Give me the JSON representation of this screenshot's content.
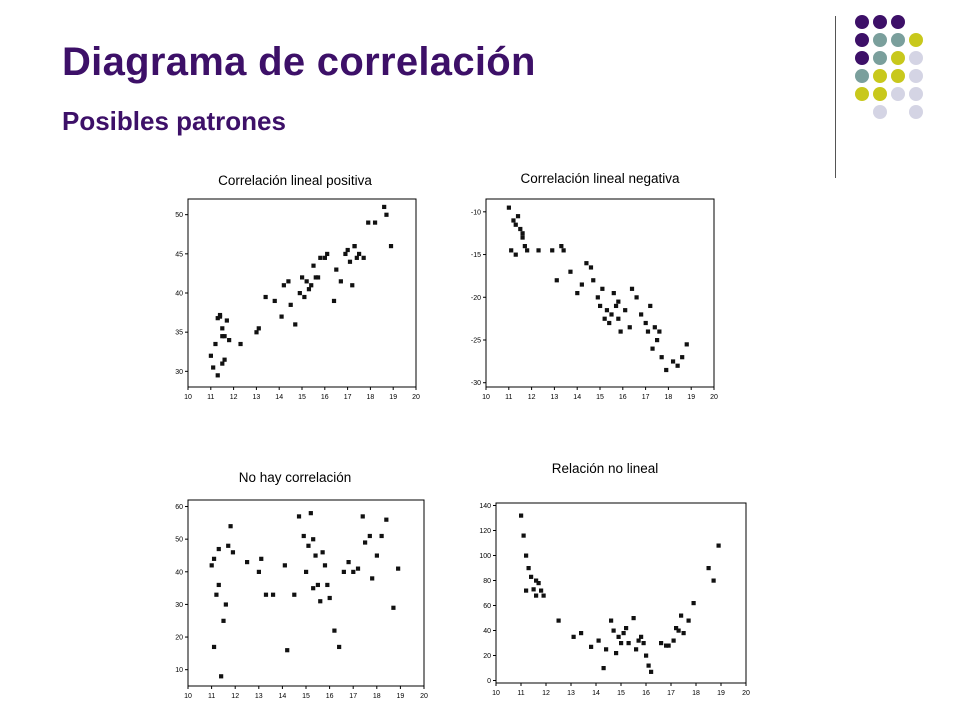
{
  "header": {
    "title": "Diagrama de correlación",
    "subtitle": "Posibles patrones"
  },
  "decor": {
    "dot_grid": [
      [
        "purple",
        "purple",
        "purple",
        null
      ],
      [
        "purple",
        "teal",
        "teal",
        "yellow"
      ],
      [
        "purple",
        "teal",
        "yellow",
        "lavender"
      ],
      [
        "teal",
        "yellow",
        "yellow",
        "lavender"
      ],
      [
        "yellow",
        "yellow",
        "lavender",
        "lavender"
      ],
      [
        null,
        "lavender",
        null,
        "lavender"
      ]
    ],
    "colors": {
      "purple": "#3d1068",
      "teal": "#7a9f9c",
      "yellow": "#c8c81c",
      "lavender": "#d4d4e4"
    }
  },
  "chart_data": [
    {
      "type": "scatter",
      "title": "Correlación lineal positiva",
      "xlim": [
        10,
        20
      ],
      "ylim": [
        28,
        52
      ],
      "xticks": [
        "10",
        "11",
        "12",
        "13",
        "14",
        "15",
        "16",
        "17",
        "18",
        "19",
        "20"
      ],
      "yticks": [
        {
          "v": 30,
          "label": "30"
        },
        {
          "v": 35,
          "label": "35"
        },
        {
          "v": 40,
          "label": "40"
        },
        {
          "v": 45,
          "label": "45"
        },
        {
          "v": 50,
          "label": "50"
        }
      ],
      "x": [
        11.0,
        11.1,
        11.2,
        11.3,
        11.4,
        11.5,
        11.6,
        11.7,
        11.8,
        11.3,
        11.5,
        11.6,
        11.4,
        11.5,
        12.3,
        13.0,
        13.1,
        13.4,
        13.8,
        14.1,
        14.2,
        14.4,
        14.5,
        14.7,
        14.9,
        15.0,
        15.1,
        15.2,
        15.3,
        15.5,
        15.6,
        15.8,
        16.0,
        16.1,
        15.4,
        15.7,
        16.4,
        16.5,
        16.7,
        16.9,
        17.0,
        17.1,
        17.2,
        17.3,
        17.4,
        17.5,
        17.7,
        17.3,
        17.9,
        18.2,
        18.6,
        18.9,
        18.7
      ],
      "y": [
        32.0,
        30.5,
        33.5,
        36.8,
        37.0,
        35.5,
        34.5,
        36.5,
        34.0,
        29.5,
        31.0,
        31.5,
        37.2,
        34.5,
        33.5,
        35.0,
        35.5,
        39.5,
        39.0,
        37.0,
        41.0,
        41.5,
        38.5,
        36.0,
        40.0,
        42.0,
        39.5,
        41.5,
        40.5,
        43.5,
        42.0,
        44.5,
        44.5,
        45.0,
        41.0,
        42.0,
        39.0,
        43.0,
        41.5,
        45.0,
        45.5,
        44.0,
        41.0,
        46.0,
        44.5,
        45.0,
        44.5,
        46.0,
        49.0,
        49.0,
        51.0,
        46.0,
        50.0
      ]
    },
    {
      "type": "scatter",
      "title": "Correlación lineal negativa",
      "xlim": [
        10,
        20
      ],
      "ylim": [
        -30.5,
        -8.5
      ],
      "xticks": [
        "10",
        "11",
        "12",
        "13",
        "14",
        "15",
        "16",
        "17",
        "18",
        "19",
        "20"
      ],
      "yticks": [
        {
          "v": -10,
          "label": "-10"
        },
        {
          "v": -15,
          "label": "-15"
        },
        {
          "v": -20,
          "label": "-20"
        },
        {
          "v": -25,
          "label": "-25"
        },
        {
          "v": -30,
          "label": "-30"
        }
      ],
      "x": [
        11.0,
        11.2,
        11.3,
        11.4,
        11.6,
        11.7,
        11.1,
        11.3,
        11.8,
        11.5,
        11.6,
        12.3,
        12.9,
        13.1,
        13.3,
        13.4,
        13.7,
        14.0,
        14.2,
        14.4,
        14.6,
        14.7,
        14.9,
        15.0,
        15.1,
        15.2,
        15.3,
        15.4,
        15.5,
        15.6,
        15.7,
        15.8,
        15.9,
        16.1,
        16.3,
        16.6,
        16.8,
        17.0,
        17.1,
        17.2,
        17.3,
        17.4,
        17.6,
        17.7,
        17.9,
        18.2,
        18.4,
        18.6,
        18.8,
        15.8,
        16.4,
        17.5
      ],
      "y": [
        -9.5,
        -11.0,
        -11.5,
        -10.5,
        -12.5,
        -14.0,
        -14.5,
        -15.0,
        -14.5,
        -12.0,
        -13.0,
        -14.5,
        -14.5,
        -18.0,
        -14.0,
        -14.5,
        -17.0,
        -19.5,
        -18.5,
        -16.0,
        -16.5,
        -18.0,
        -20.0,
        -21.0,
        -19.0,
        -22.5,
        -21.5,
        -23.0,
        -22.0,
        -19.5,
        -21.0,
        -22.5,
        -24.0,
        -21.5,
        -23.5,
        -20.0,
        -22.0,
        -23.0,
        -24.0,
        -21.0,
        -26.0,
        -23.5,
        -24.0,
        -27.0,
        -28.5,
        -27.5,
        -28.0,
        -27.0,
        -25.5,
        -20.5,
        -19.0,
        -25.0
      ]
    },
    {
      "type": "scatter",
      "title": "No hay correlación",
      "xlim": [
        10,
        20
      ],
      "ylim": [
        5,
        62
      ],
      "xticks": [
        "10",
        "11",
        "12",
        "13",
        "14",
        "15",
        "16",
        "17",
        "18",
        "19",
        "20"
      ],
      "yticks": [
        {
          "v": 10,
          "label": "10"
        },
        {
          "v": 20,
          "label": "20"
        },
        {
          "v": 30,
          "label": "30"
        },
        {
          "v": 40,
          "label": "40"
        },
        {
          "v": 50,
          "label": "50"
        },
        {
          "v": 60,
          "label": "60"
        }
      ],
      "x": [
        11.0,
        11.1,
        11.2,
        11.3,
        11.5,
        11.6,
        11.7,
        11.8,
        11.9,
        11.4,
        11.1,
        11.3,
        12.5,
        13.0,
        13.1,
        13.3,
        13.6,
        14.1,
        14.2,
        14.5,
        14.7,
        14.9,
        15.0,
        15.1,
        15.2,
        15.3,
        15.4,
        15.5,
        15.6,
        15.7,
        15.8,
        15.9,
        15.3,
        16.0,
        16.2,
        16.4,
        16.8,
        17.0,
        17.2,
        17.4,
        17.5,
        17.7,
        17.8,
        18.0,
        18.2,
        18.4,
        18.7,
        18.9,
        16.6
      ],
      "y": [
        42.0,
        44.0,
        33.0,
        36.0,
        25.0,
        30.0,
        48.0,
        54.0,
        46.0,
        8.0,
        17.0,
        47.0,
        43.0,
        40.0,
        44.0,
        33.0,
        33.0,
        42.0,
        16.0,
        33.0,
        57.0,
        51.0,
        40.0,
        48.0,
        58.0,
        50.0,
        45.0,
        36.0,
        31.0,
        46.0,
        42.0,
        36.0,
        35.0,
        32.0,
        22.0,
        17.0,
        43.0,
        40.0,
        41.0,
        57.0,
        49.0,
        51.0,
        38.0,
        45.0,
        51.0,
        56.0,
        29.0,
        41.0,
        40.0
      ]
    },
    {
      "type": "scatter",
      "title": "Relación no lineal",
      "xlim": [
        10,
        20
      ],
      "ylim": [
        -2,
        142
      ],
      "xticks": [
        "10",
        "11",
        "12",
        "13",
        "14",
        "15",
        "16",
        "17",
        "18",
        "19",
        "20"
      ],
      "yticks": [
        {
          "v": 0,
          "label": "0"
        },
        {
          "v": 20,
          "label": "20"
        },
        {
          "v": 40,
          "label": "40"
        },
        {
          "v": 60,
          "label": "60"
        },
        {
          "v": 80,
          "label": "80"
        },
        {
          "v": 100,
          "label": "100"
        },
        {
          "v": 120,
          "label": "120"
        },
        {
          "v": 140,
          "label": "140"
        }
      ],
      "x": [
        11.0,
        11.1,
        11.2,
        11.3,
        11.4,
        11.5,
        11.6,
        11.7,
        11.8,
        11.9,
        11.2,
        11.6,
        12.5,
        13.1,
        13.4,
        13.8,
        14.1,
        14.4,
        14.6,
        14.7,
        14.8,
        14.9,
        15.0,
        15.1,
        15.2,
        15.3,
        15.5,
        15.6,
        15.7,
        15.8,
        15.9,
        16.0,
        16.1,
        16.2,
        14.3,
        16.6,
        16.8,
        16.9,
        17.1,
        17.2,
        17.3,
        17.4,
        17.5,
        17.7,
        17.9,
        18.5,
        18.7,
        18.9
      ],
      "y": [
        132.0,
        116.0,
        100.0,
        90.0,
        83.0,
        73.0,
        80.0,
        78.0,
        72.0,
        68.0,
        72.0,
        68.0,
        48.0,
        35.0,
        38.0,
        27.0,
        32.0,
        25.0,
        48.0,
        40.0,
        22.0,
        35.0,
        30.0,
        38.0,
        42.0,
        30.0,
        50.0,
        25.0,
        32.0,
        35.0,
        30.0,
        20.0,
        12.0,
        7.0,
        10.0,
        30.0,
        28.0,
        28.0,
        32.0,
        42.0,
        40.0,
        52.0,
        38.0,
        48.0,
        62.0,
        90.0,
        80.0,
        108.0
      ]
    }
  ]
}
